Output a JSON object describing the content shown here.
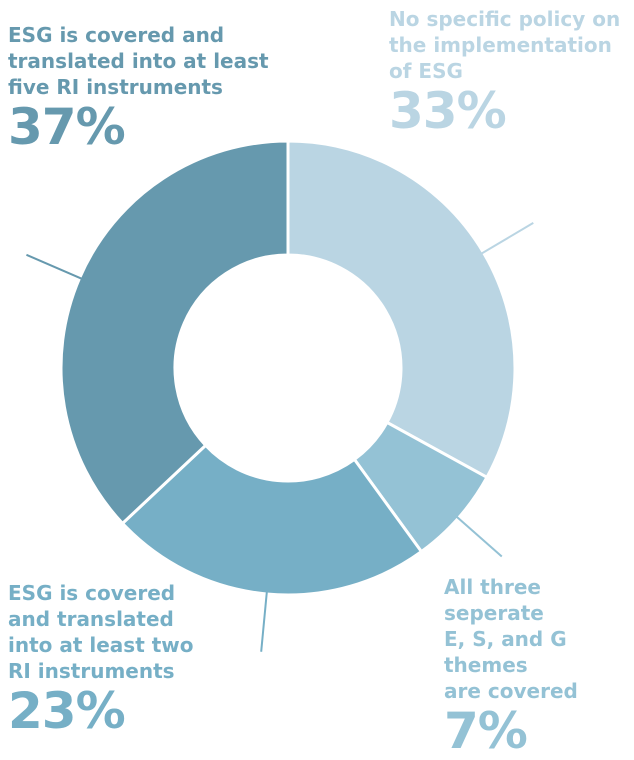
{
  "chart_data": {
    "type": "pie",
    "variant": "donut",
    "categories": [
      "No specific policy on\nthe implementation\nof ESG",
      "All three seperate\nE, S, and G themes\nare covered",
      "ESG is covered\nand translated\ninto at least two\nRI instruments",
      "ESG is covered and\ntranslated into at least\nfive RI instruments"
    ],
    "values": [
      33,
      7,
      23,
      37
    ],
    "value_labels": [
      "33%",
      "7%",
      "23%",
      "37%"
    ],
    "colors": [
      "#bad5e3",
      "#94c2d5",
      "#76afc6",
      "#6699ae"
    ],
    "title": "",
    "legend": "none"
  }
}
